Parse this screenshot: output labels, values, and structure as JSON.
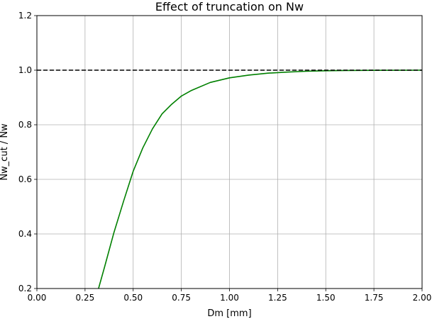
{
  "chart_data": {
    "type": "line",
    "title": "Effect of truncation on Nw",
    "xlabel": "Dm [mm]",
    "ylabel": "Nw_cut / Nw",
    "xlim": [
      0,
      2
    ],
    "ylim": [
      0.2,
      1.2
    ],
    "x_ticks": [
      "0.00",
      "0.25",
      "0.50",
      "0.75",
      "1.00",
      "1.25",
      "1.50",
      "1.75",
      "2.00"
    ],
    "y_ticks": [
      "0.2",
      "0.4",
      "0.6",
      "0.8",
      "1.0",
      "1.2"
    ],
    "grid": true,
    "series": [
      {
        "color": "#008000",
        "style": "solid",
        "x": [
          0.32,
          0.35,
          0.4,
          0.45,
          0.5,
          0.55,
          0.6,
          0.65,
          0.7,
          0.75,
          0.8,
          0.9,
          1.0,
          1.1,
          1.2,
          1.3,
          1.4,
          1.5,
          1.6,
          1.75,
          2.0
        ],
        "y": [
          0.2,
          0.275,
          0.405,
          0.52,
          0.63,
          0.715,
          0.785,
          0.84,
          0.875,
          0.905,
          0.925,
          0.955,
          0.972,
          0.982,
          0.989,
          0.993,
          0.996,
          0.998,
          0.999,
          0.9995,
          1.0
        ]
      },
      {
        "color": "#000000",
        "style": "dashed",
        "x": [
          0,
          2
        ],
        "y": [
          1.0,
          1.0
        ]
      }
    ]
  }
}
